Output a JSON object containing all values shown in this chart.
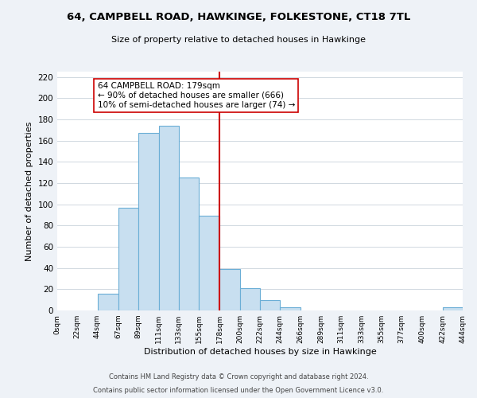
{
  "title": "64, CAMPBELL ROAD, HAWKINGE, FOLKESTONE, CT18 7TL",
  "subtitle": "Size of property relative to detached houses in Hawkinge",
  "xlabel": "Distribution of detached houses by size in Hawkinge",
  "ylabel": "Number of detached properties",
  "bar_color": "#c8dff0",
  "bar_edge_color": "#6baed6",
  "vline_x": 178,
  "vline_color": "#cc0000",
  "annotation_title": "64 CAMPBELL ROAD: 179sqm",
  "annotation_line1": "← 90% of detached houses are smaller (666)",
  "annotation_line2": "10% of semi-detached houses are larger (74) →",
  "annotation_box_color": "white",
  "annotation_box_edge": "#cc0000",
  "bins": [
    0,
    22,
    44,
    67,
    89,
    111,
    133,
    155,
    178,
    200,
    222,
    244,
    266,
    289,
    311,
    333,
    355,
    377,
    400,
    422,
    444
  ],
  "counts": [
    0,
    0,
    16,
    97,
    167,
    174,
    125,
    89,
    39,
    21,
    10,
    3,
    0,
    0,
    0,
    0,
    0,
    0,
    0,
    3
  ],
  "tick_labels": [
    "0sqm",
    "22sqm",
    "44sqm",
    "67sqm",
    "89sqm",
    "111sqm",
    "133sqm",
    "155sqm",
    "178sqm",
    "200sqm",
    "222sqm",
    "244sqm",
    "266sqm",
    "289sqm",
    "311sqm",
    "333sqm",
    "355sqm",
    "377sqm",
    "400sqm",
    "422sqm",
    "444sqm"
  ],
  "ylim": [
    0,
    225
  ],
  "yticks": [
    0,
    20,
    40,
    60,
    80,
    100,
    120,
    140,
    160,
    180,
    200,
    220
  ],
  "footer1": "Contains HM Land Registry data © Crown copyright and database right 2024.",
  "footer2": "Contains public sector information licensed under the Open Government Licence v3.0.",
  "background_color": "#eef2f7",
  "plot_background": "white",
  "grid_color": "#d0d8e0"
}
